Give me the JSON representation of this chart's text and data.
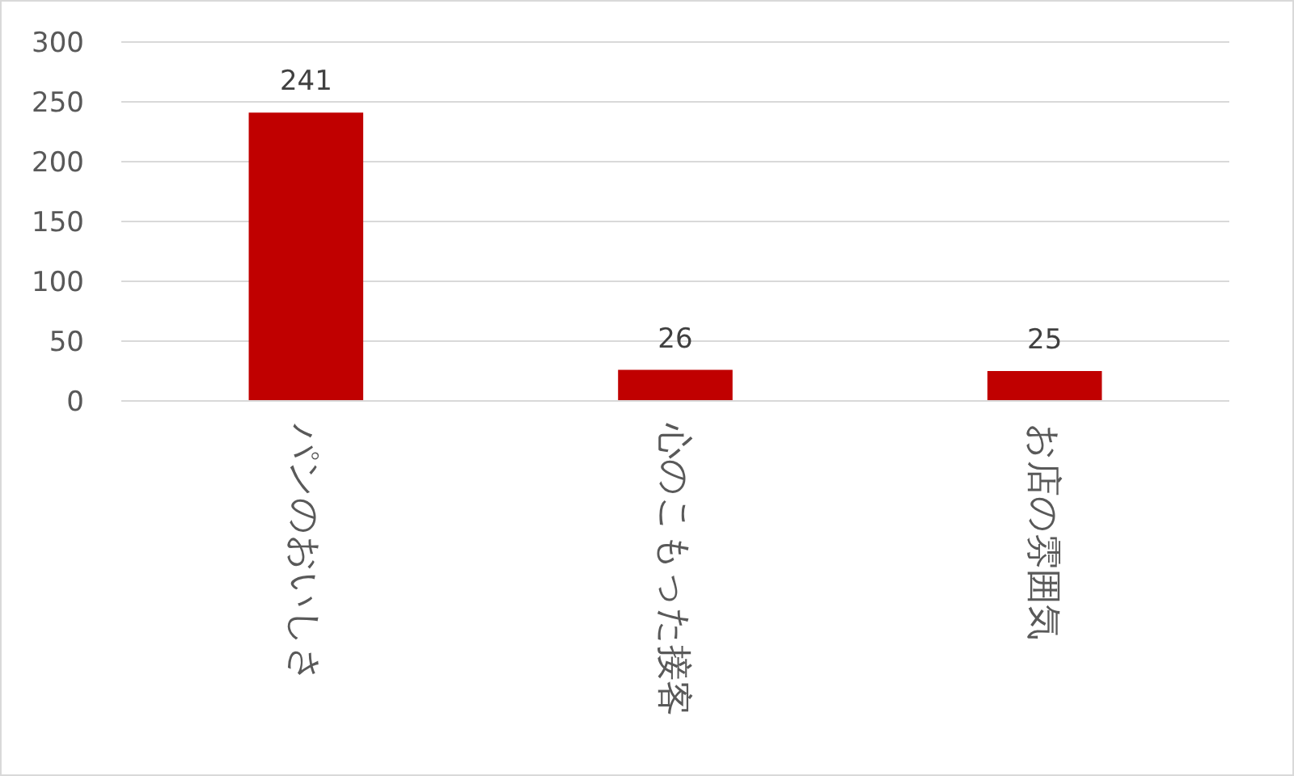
{
  "chart_data": {
    "type": "bar",
    "categories": [
      "パンのおいしさ",
      "心のこもった接客",
      "お店の雰囲気"
    ],
    "values": [
      241,
      26,
      25
    ],
    "color": "#c00000",
    "ylim": [
      0,
      300
    ],
    "yticks": [
      0,
      50,
      100,
      150,
      200,
      250,
      300
    ],
    "grid": "y",
    "data_labels": true
  }
}
